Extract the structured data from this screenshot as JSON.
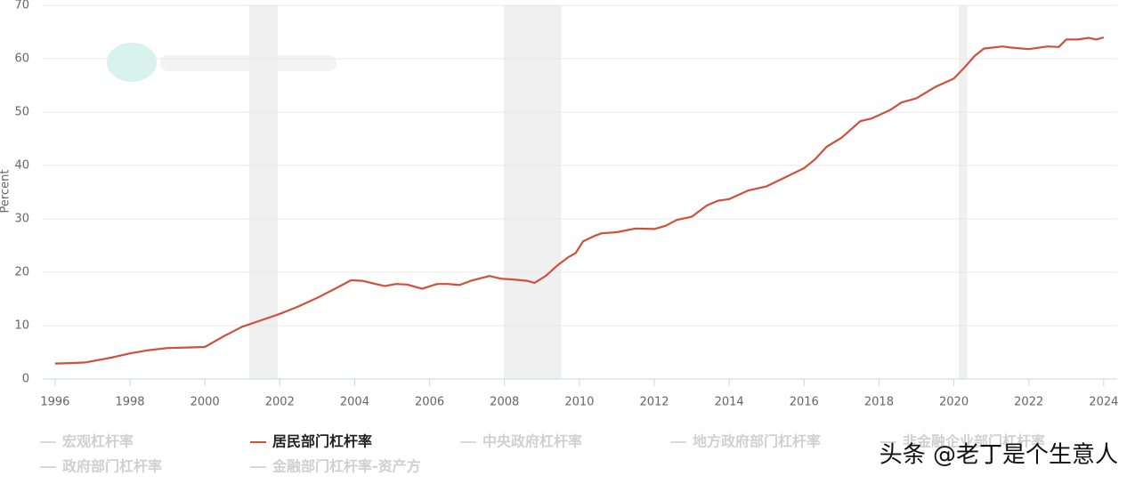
{
  "chart_data": {
    "type": "line",
    "y_label": "Percent",
    "xlim": [
      1995.67,
      2024.36
    ],
    "ylim": [
      0,
      70
    ],
    "xticks": [
      1996,
      1998,
      2000,
      2002,
      2004,
      2006,
      2008,
      2010,
      2012,
      2014,
      2016,
      2018,
      2020,
      2022,
      2024
    ],
    "yticks": [
      0,
      10,
      20,
      30,
      40,
      50,
      60,
      70
    ],
    "grid": true,
    "shading": [
      [
        2001.18,
        2001.94
      ],
      [
        2007.98,
        2009.52
      ],
      [
        2020.13,
        2020.36
      ]
    ],
    "shading_color": "#f0f0f0",
    "series": [
      {
        "name": "宏观杠杆率",
        "color": "#d9d9d9",
        "visible": false
      },
      {
        "name": "居民部门杠杆率",
        "color": "#d0503a",
        "visible": true,
        "x": [
          1996,
          1996.5,
          1996.8,
          1997.5,
          1998,
          1998.5,
          1999,
          1999.5,
          2000,
          2000.5,
          2001,
          2001.5,
          2002,
          2002.5,
          2003,
          2003.5,
          2003.9,
          2004.2,
          2004.5,
          2004.8,
          2005.1,
          2005.4,
          2005.8,
          2006.2,
          2006.5,
          2006.8,
          2007.1,
          2007.6,
          2007.9,
          2008.3,
          2008.6,
          2008.8,
          2009.1,
          2009.4,
          2009.7,
          2009.9,
          2010.1,
          2010.4,
          2010.6,
          2011,
          2011.5,
          2012,
          2012.3,
          2012.6,
          2013,
          2013.4,
          2013.7,
          2014,
          2014.5,
          2015,
          2015.5,
          2016,
          2016.3,
          2016.6,
          2017,
          2017.5,
          2017.8,
          2018.3,
          2018.6,
          2019,
          2019.5,
          2020,
          2020.3,
          2020.55,
          2020.8,
          2021.3,
          2021.5,
          2022,
          2022.5,
          2022.8,
          2023,
          2023.3,
          2023.6,
          2023.8,
          2024
        ],
        "values": [
          2.9,
          3.0,
          3.1,
          4.0,
          4.8,
          5.4,
          5.8,
          5.9,
          6.0,
          8.0,
          9.8,
          11.0,
          12.2,
          13.6,
          15.2,
          17.0,
          18.5,
          18.4,
          17.9,
          17.4,
          17.8,
          17.7,
          16.9,
          17.8,
          17.8,
          17.6,
          18.4,
          19.3,
          18.8,
          18.6,
          18.4,
          18.0,
          19.3,
          21.2,
          22.8,
          23.6,
          25.8,
          26.8,
          27.3,
          27.5,
          28.2,
          28.1,
          28.7,
          29.8,
          30.4,
          32.5,
          33.4,
          33.7,
          35.3,
          36.1,
          37.8,
          39.5,
          41.2,
          43.5,
          45.2,
          48.3,
          48.8,
          50.4,
          51.8,
          52.6,
          54.7,
          56.3,
          58.5,
          60.5,
          61.9,
          62.3,
          62.1,
          61.8,
          62.3,
          62.2,
          63.6,
          63.6,
          63.9,
          63.6,
          64.0
        ]
      },
      {
        "name": "中央政府杠杆率",
        "color": "#d9d9d9",
        "visible": false
      },
      {
        "name": "地方政府部门杠杆率",
        "color": "#d9d9d9",
        "visible": false
      },
      {
        "name": "非金融企业部门杠杆率",
        "color": "#d9d9d9",
        "visible": false
      },
      {
        "name": "政府部门杠杆率",
        "color": "#d9d9d9",
        "visible": false
      },
      {
        "name": "金融部门杠杆率-资产方",
        "color": "#d9d9d9",
        "visible": false
      }
    ]
  },
  "watermark": "头条 @老丁是个生意人"
}
